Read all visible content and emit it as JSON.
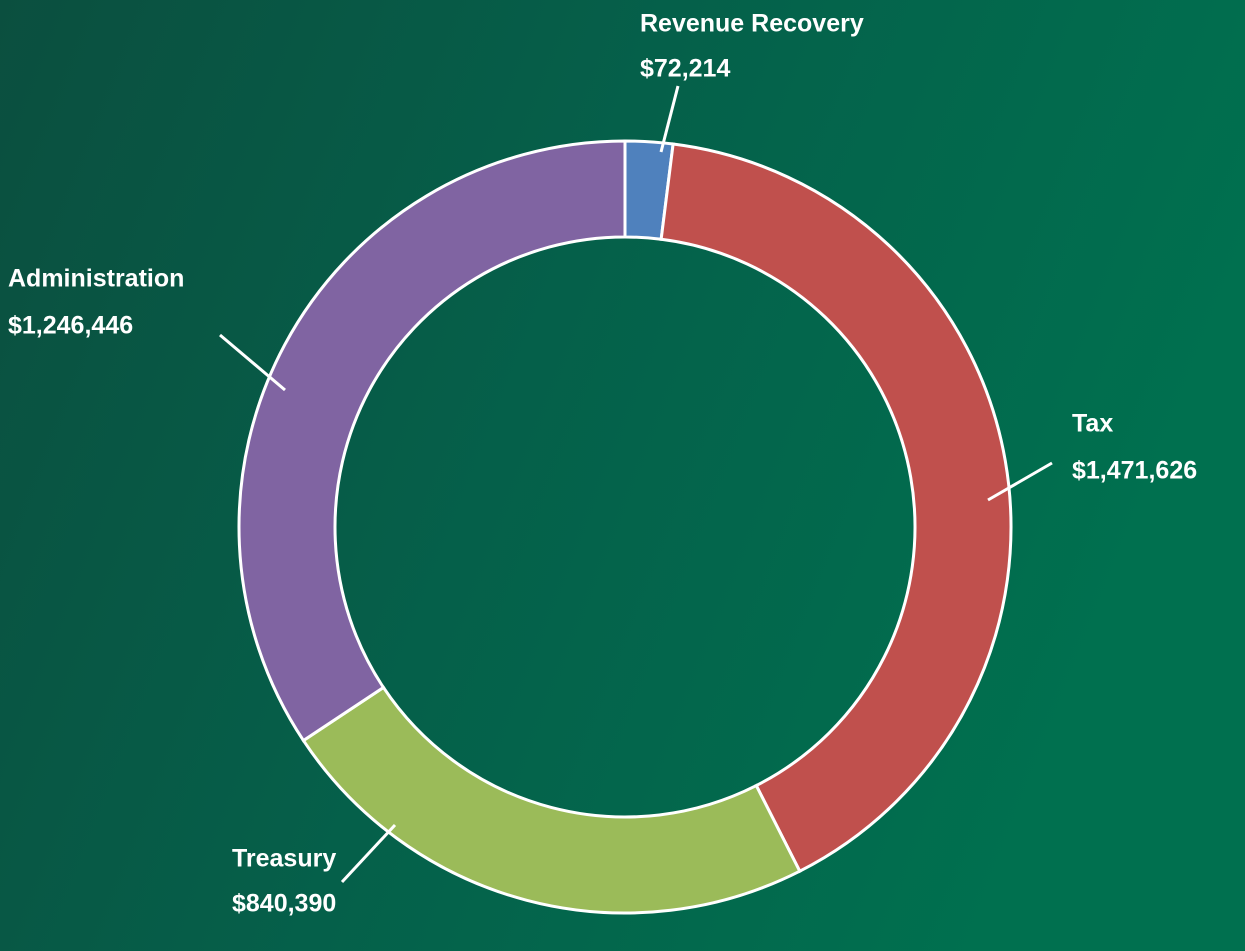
{
  "chart_data": {
    "type": "donut",
    "categories": [
      "Revenue Recovery",
      "Tax",
      "Treasury",
      "Administration"
    ],
    "values": [
      72214,
      1471626,
      840390,
      1246446
    ],
    "value_labels": [
      "$72,214",
      "$1,471,626",
      "$840,390",
      "$1,246,446"
    ],
    "colors": [
      "#4f81bd",
      "#c0504d",
      "#9bbb59",
      "#8064a2"
    ]
  }
}
